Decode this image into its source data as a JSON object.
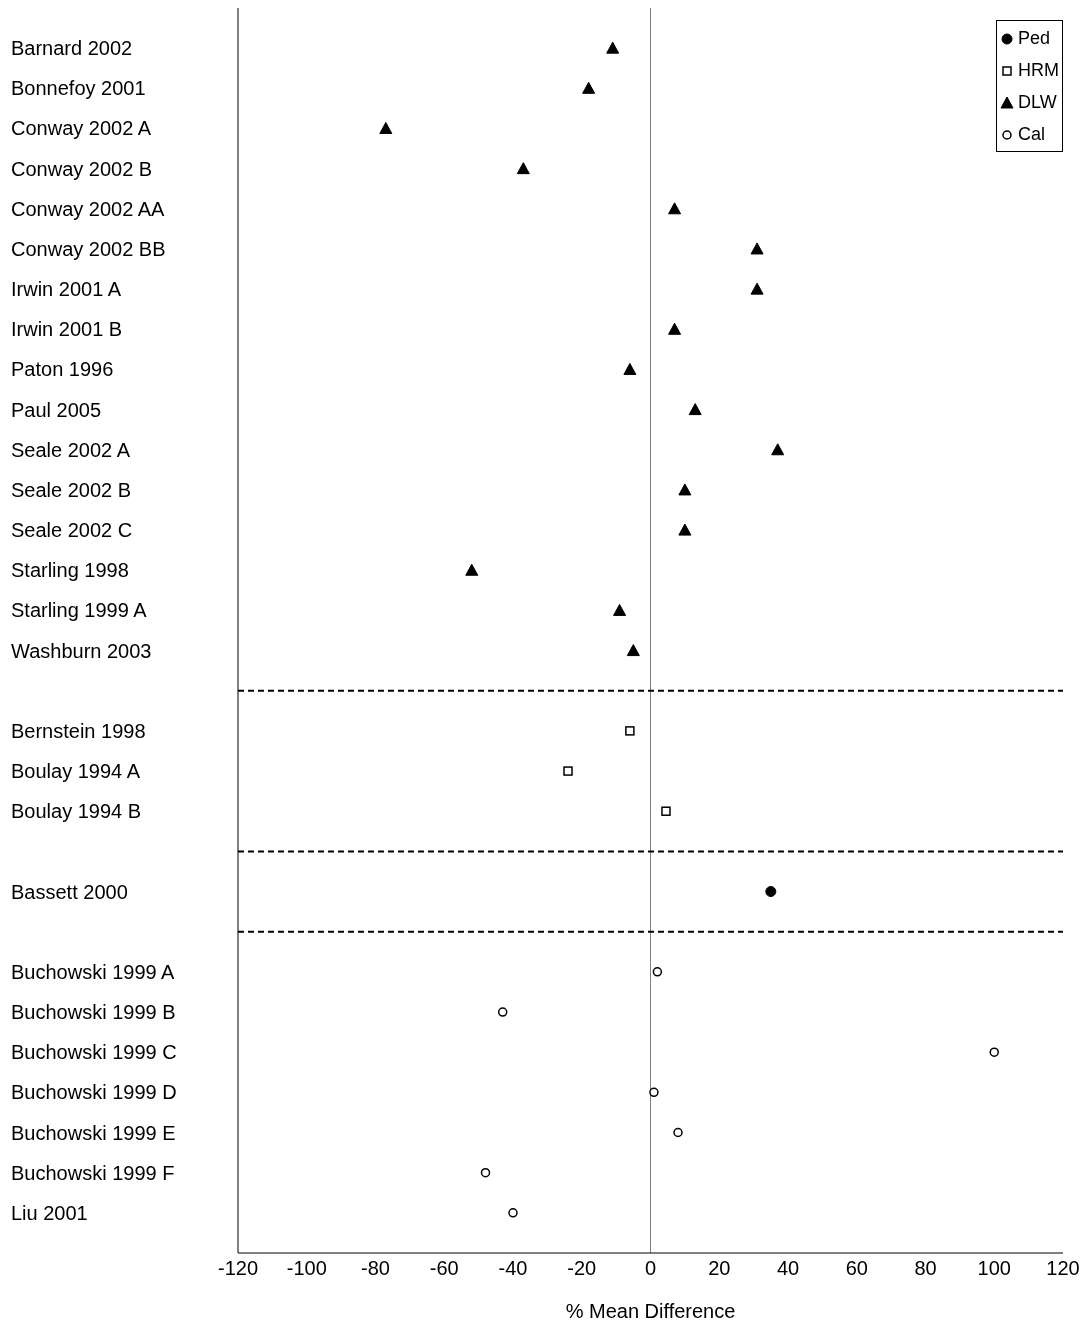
{
  "chart_data": {
    "type": "scatter",
    "xlabel": "% Mean Difference",
    "categories": [
      "Barnard 2002",
      "Bonnefoy 2001",
      "Conway 2002 A",
      "Conway 2002 B",
      "Conway 2002 AA",
      "Conway 2002 BB",
      "Irwin 2001 A",
      "Irwin 2001 B",
      "Paton 1996",
      "Paul 2005",
      "Seale 2002 A",
      "Seale 2002 B",
      "Seale 2002 C",
      "Starling 1998",
      "Starling 1999 A",
      "Washburn 2003",
      null,
      "Bernstein 1998",
      "Boulay 1994 A",
      "Boulay 1994 B",
      null,
      "Bassett 2000",
      null,
      "Buchowski 1999 A",
      "Buchowski 1999 B",
      "Buchowski 1999 C",
      "Buchowski 1999 D",
      "Buchowski 1999 E",
      "Buchowski 1999 F",
      "Liu 2001"
    ],
    "orientation": "horizontal",
    "xlim": [
      -120,
      120
    ],
    "xticks": [
      -120,
      -100,
      -80,
      -60,
      -40,
      -20,
      0,
      20,
      40,
      60,
      80,
      100,
      120
    ],
    "legend": "top right",
    "series": [
      {
        "name": "Ped",
        "color": "#000000",
        "marker": "circle",
        "values": [
          null,
          null,
          null,
          null,
          null,
          null,
          null,
          null,
          null,
          null,
          null,
          null,
          null,
          null,
          null,
          null,
          null,
          null,
          null,
          null,
          null,
          35,
          null,
          null,
          null,
          null,
          null,
          null,
          null,
          null
        ]
      },
      {
        "name": "HRM",
        "color": "#000000",
        "marker": "square",
        "values": [
          null,
          null,
          null,
          null,
          null,
          null,
          null,
          null,
          null,
          null,
          null,
          null,
          null,
          null,
          null,
          null,
          null,
          -6,
          -24,
          4.5,
          null,
          null,
          null,
          null,
          null,
          null,
          null,
          null,
          null,
          null
        ]
      },
      {
        "name": "DLW",
        "color": "#000000",
        "marker": "triangle",
        "values": [
          -11,
          -18,
          -77,
          -37,
          7,
          31,
          31,
          7,
          -6,
          13,
          37,
          10,
          10,
          -52,
          -9,
          -5,
          null,
          null,
          null,
          null,
          null,
          null,
          null,
          null,
          null,
          null,
          null,
          null,
          null,
          null
        ]
      },
      {
        "name": "Cal",
        "color": "#000000",
        "marker": "circle",
        "values": [
          null,
          null,
          null,
          null,
          null,
          null,
          null,
          null,
          null,
          null,
          null,
          null,
          null,
          null,
          null,
          null,
          null,
          null,
          null,
          null,
          null,
          null,
          null,
          2,
          -43,
          100,
          1,
          8,
          -48,
          -40
        ]
      }
    ],
    "ref_lines": [
      {
        "axis": "x",
        "value": 0,
        "color": "#808080",
        "line_style": "solid"
      }
    ]
  }
}
